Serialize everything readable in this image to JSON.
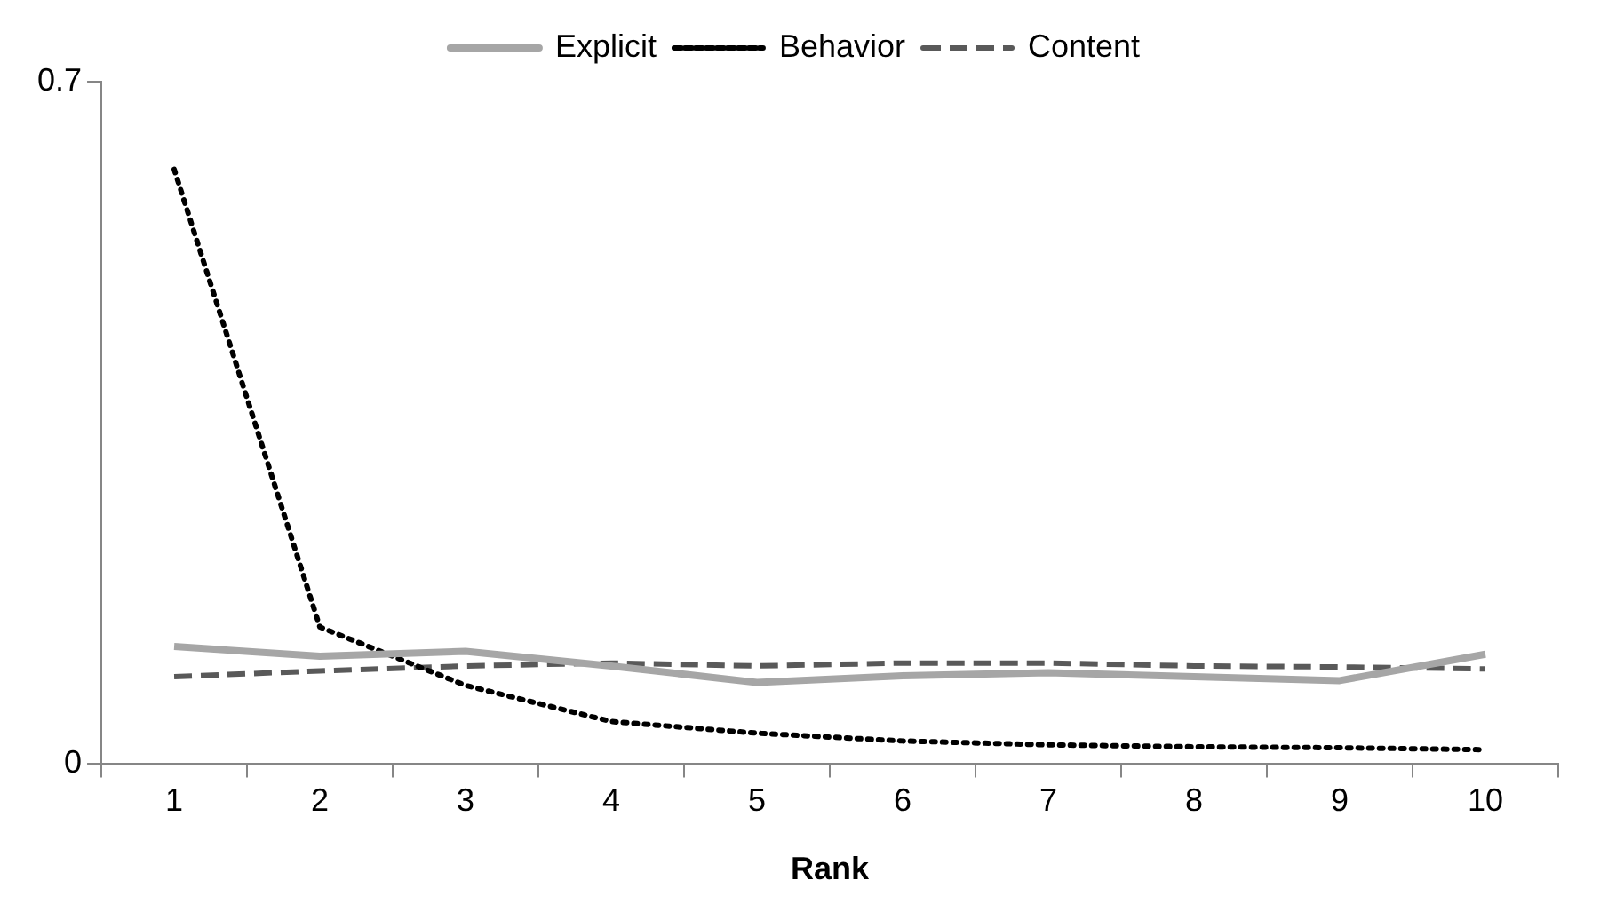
{
  "chart_data": {
    "type": "line",
    "xlabel": "Rank",
    "categories": [
      "1",
      "2",
      "3",
      "4",
      "5",
      "6",
      "7",
      "8",
      "9",
      "10"
    ],
    "series": [
      {
        "name": "Explicit",
        "color": "#a6a6a6",
        "line_style": "solid",
        "values": [
          0.12,
          0.11,
          0.115,
          0.1,
          0.083,
          0.09,
          0.093,
          0.089,
          0.085,
          0.112
        ]
      },
      {
        "name": "Behavior",
        "color": "#000000",
        "line_style": "dotted",
        "values": [
          0.61,
          0.14,
          0.08,
          0.043,
          0.031,
          0.023,
          0.019,
          0.017,
          0.016,
          0.014
        ]
      },
      {
        "name": "Content",
        "color": "#595959",
        "line_style": "dashed",
        "values": [
          0.089,
          0.095,
          0.1,
          0.103,
          0.1,
          0.103,
          0.103,
          0.1,
          0.099,
          0.097
        ]
      }
    ],
    "ylim": [
      0,
      0.7
    ],
    "yticks": [
      0,
      0.7
    ],
    "grid": false,
    "legend": "top",
    "marker": "none"
  }
}
